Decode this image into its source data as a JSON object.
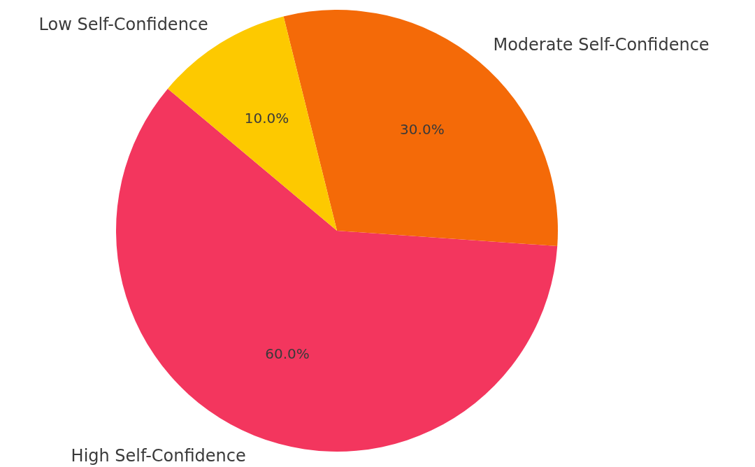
{
  "chart_data": {
    "type": "pie",
    "categories": [
      "High Self-Confidence",
      "Moderate Self-Confidence",
      "Low Self-Confidence"
    ],
    "values": [
      60,
      30,
      10
    ],
    "colors": [
      "#f3365e",
      "#f46a08",
      "#fdc900"
    ],
    "value_labels": [
      "60.0%",
      "30.0%",
      "10.0%"
    ]
  }
}
